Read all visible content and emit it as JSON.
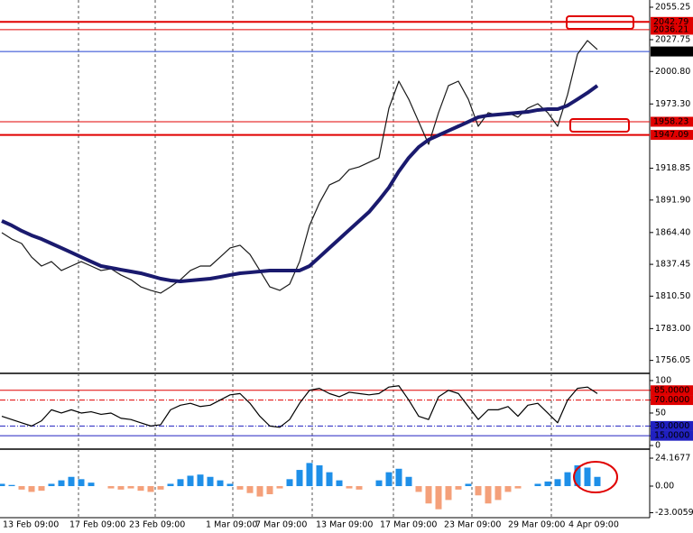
{
  "chart_data": [
    {
      "type": "line",
      "ylim": [
        1745.85,
        2061.36
      ],
      "yticks": [
        2055.25,
        2027.75,
        {
          "value": 2000.8,
          "label": "2000.80"
        },
        {
          "value": 1973.3,
          "label": "1973.30"
        },
        1918.85,
        {
          "value": 1891.9,
          "label": "1891.90"
        },
        {
          "value": 1864.4,
          "label": "1864.40"
        },
        1837.45,
        {
          "value": 1810.5,
          "label": "1810.50"
        },
        {
          "value": 1783.0,
          "label": "1783.00"
        },
        1756.05
      ],
      "levels": [
        {
          "value": 2042.79,
          "color": "#e00000"
        },
        {
          "value": 2036.21,
          "color": "#e00000"
        },
        {
          "value": 2017.76,
          "color": "#2040d0"
        },
        {
          "value": 1958.23,
          "color": "#e00000"
        },
        {
          "value": 1947.09,
          "color": "#e00000"
        }
      ],
      "time_labels": [
        "13 Feb 09:00",
        "17 Feb 09:00",
        "23 Feb 09:00",
        "1 Mar 09:00",
        "7 Mar 09:00",
        "13 Mar 09:00",
        "17 Mar 09:00",
        "23 Mar 09:00",
        "29 Mar 09:00",
        "4 Apr 09:00"
      ],
      "series": [
        {
          "color": "#1a1a1a",
          "values": [
            1864.3,
            1858.9,
            1855.1,
            1843.6,
            1836.0,
            1839.8,
            1832.2,
            1836.0,
            1839.8,
            1836.0,
            1832.2,
            1833.7,
            1828.4,
            1824.5,
            1818.4,
            1815.4,
            1813.1,
            1818.4,
            1824.5,
            1832.2,
            1836.0,
            1836.0,
            1843.6,
            1851.3,
            1853.6,
            1845.9,
            1832.2,
            1818.4,
            1815.4,
            1820.7,
            1839.8,
            1870.4,
            1889.5,
            1904.7,
            1908.6,
            1917.7,
            1920.0,
            1923.9,
            1927.7,
            1969.7,
            1992.6,
            1977.3,
            1958.2,
            1939.1,
            1965.9,
            1988.8,
            1992.6,
            1977.3,
            1954.4,
            1965.9,
            1963.6,
            1965.9,
            1962.1,
            1969.7,
            1973.5,
            1965.9,
            1954.4,
            1981.2,
            2015.5,
            2027.0,
            2019.4
          ]
        },
        {
          "color": "#1a1a6e",
          "values": [
            1874.2,
            1870.4,
            1865.8,
            1862.0,
            1858.9,
            1855.1,
            1851.3,
            1847.5,
            1843.6,
            1839.8,
            1836.0,
            1834.5,
            1832.9,
            1831.4,
            1829.9,
            1827.6,
            1825.3,
            1823.8,
            1823.0,
            1823.8,
            1824.5,
            1825.3,
            1826.8,
            1828.4,
            1829.9,
            1830.6,
            1831.4,
            1832.2,
            1832.2,
            1832.2,
            1832.2,
            1836.0,
            1843.6,
            1851.3,
            1858.9,
            1866.6,
            1874.2,
            1881.8,
            1891.8,
            1902.5,
            1916.2,
            1927.7,
            1936.8,
            1943.0,
            1946.8,
            1950.6,
            1954.4,
            1958.2,
            1962.1,
            1963.6,
            1964.3,
            1965.1,
            1965.9,
            1966.6,
            1968.2,
            1968.9,
            1968.9,
            1972.0,
            1977.3,
            1982.7,
            1988.8
          ]
        }
      ]
    },
    {
      "type": "line",
      "ylim": [
        -4.2,
        108.3
      ],
      "yticks": [
        100,
        {
          "value": 85,
          "label": "85.0000"
        },
        {
          "value": 70,
          "label": "70.0000"
        },
        50,
        {
          "value": 30,
          "label": "30.0000"
        },
        {
          "value": 15,
          "label": "15.0000"
        },
        0
      ],
      "series": [
        {
          "color": "#000000",
          "values": [
            45,
            40,
            35,
            30,
            38,
            55,
            50,
            55,
            50,
            52,
            48,
            50,
            42,
            40,
            35,
            30,
            32,
            55,
            62,
            65,
            60,
            62,
            70,
            78,
            80,
            65,
            45,
            30,
            28,
            40,
            65,
            85,
            88,
            80,
            75,
            82,
            80,
            78,
            80,
            90,
            92,
            70,
            45,
            40,
            75,
            85,
            80,
            60,
            40,
            55,
            55,
            60,
            45,
            62,
            65,
            50,
            35,
            70,
            88,
            90,
            80
          ]
        }
      ]
    },
    {
      "type": "bar",
      "ylim": [
        -26.5,
        31.2
      ],
      "yticks": [
        24.1677,
        {
          "value": 0,
          "label": "0.00"
        },
        -23.0059
      ],
      "color": "#1e8fe8",
      "negative_color": "#f4a07a",
      "values": [
        2,
        1,
        -3,
        -5,
        -4,
        2,
        5,
        8,
        6,
        3,
        0,
        -2,
        -3,
        -2,
        -4,
        -5,
        -3,
        2,
        6,
        9,
        10,
        8,
        5,
        2,
        -3,
        -6,
        -9,
        -7,
        -2,
        6,
        14,
        20,
        18,
        12,
        5,
        -2,
        -3,
        0,
        5,
        12,
        15,
        8,
        -5,
        -15,
        -20,
        -12,
        -3,
        2,
        -8,
        -15,
        -12,
        -5,
        -2,
        0,
        2,
        4,
        6,
        12,
        18,
        16,
        8
      ]
    }
  ]
}
